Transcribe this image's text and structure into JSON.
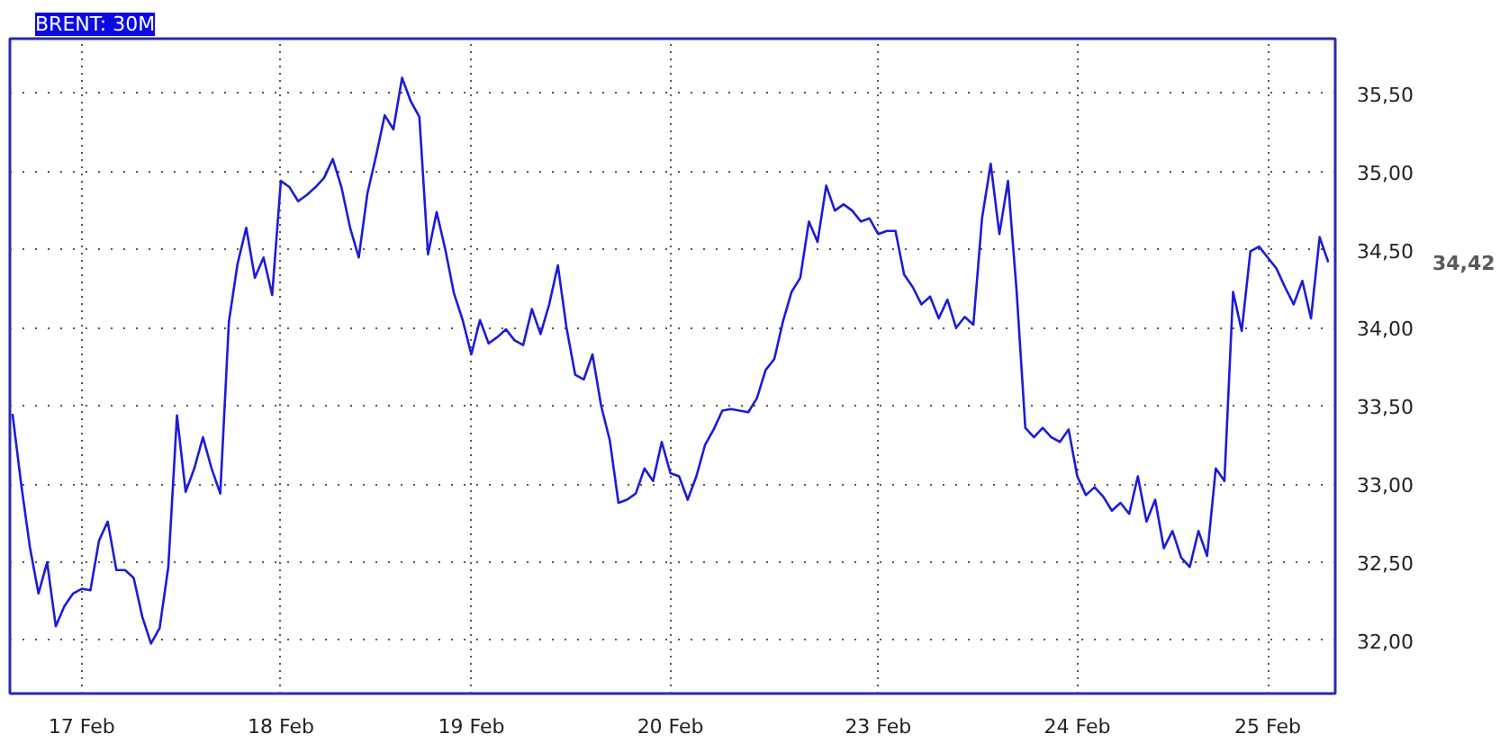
{
  "chart_data": {
    "type": "line",
    "title": "BRENT: 30M",
    "categories": [
      null,
      null,
      null,
      null,
      null,
      null,
      null,
      null,
      "17 Feb",
      null,
      null,
      null,
      null,
      null,
      null,
      null,
      null,
      null,
      null,
      null,
      null,
      null,
      null,
      null,
      null,
      null,
      null,
      null,
      null,
      null,
      null,
      "18 Feb",
      null,
      null,
      null,
      null,
      null,
      null,
      null,
      null,
      null,
      null,
      null,
      null,
      null,
      null,
      null,
      null,
      null,
      null,
      null,
      null,
      null,
      "19 Feb",
      null,
      null,
      null,
      null,
      null,
      null,
      null,
      null,
      null,
      null,
      null,
      null,
      null,
      null,
      null,
      null,
      null,
      null,
      null,
      null,
      null,
      null,
      "20 Feb",
      null,
      null,
      null,
      null,
      null,
      null,
      null,
      null,
      null,
      null,
      null,
      null,
      null,
      null,
      null,
      null,
      null,
      null,
      null,
      null,
      null,
      null,
      null,
      "23 Feb",
      null,
      null,
      null,
      null,
      null,
      null,
      null,
      null,
      null,
      null,
      null,
      null,
      null,
      null,
      null,
      null,
      null,
      null,
      null,
      null,
      null,
      null,
      "24 Feb",
      null,
      null,
      null,
      null,
      null,
      null,
      null,
      null,
      null,
      null,
      null,
      null,
      null,
      null,
      null,
      null,
      null,
      null,
      null,
      null,
      null,
      "25 Feb",
      null,
      null,
      null,
      null,
      null,
      null,
      null
    ],
    "series": [
      {
        "color": "#1c1cd8",
        "values": [
          33.45,
          33.0,
          32.6,
          32.3,
          32.5,
          32.09,
          32.22,
          32.3,
          32.33,
          32.32,
          32.64,
          32.76,
          32.45,
          32.45,
          32.4,
          32.15,
          31.98,
          32.08,
          32.47,
          33.44,
          32.95,
          33.1,
          33.3,
          33.1,
          32.94,
          34.04,
          34.41,
          34.64,
          34.32,
          34.45,
          34.21,
          34.94,
          34.9,
          34.81,
          34.85,
          34.9,
          34.96,
          35.08,
          34.9,
          34.64,
          34.45,
          34.86,
          35.1,
          35.36,
          35.27,
          35.6,
          35.45,
          35.35,
          34.47,
          34.74,
          34.5,
          34.22,
          34.05,
          33.83,
          34.05,
          33.9,
          33.94,
          33.99,
          33.92,
          33.89,
          34.12,
          33.96,
          34.15,
          34.4,
          34.0,
          33.7,
          33.67,
          33.83,
          33.5,
          33.28,
          32.88,
          32.9,
          32.94,
          33.1,
          33.02,
          33.27,
          33.07,
          33.05,
          32.9,
          33.05,
          33.25,
          33.35,
          33.47,
          33.48,
          33.47,
          33.46,
          33.55,
          33.73,
          33.8,
          34.04,
          34.23,
          34.32,
          34.68,
          34.55,
          34.91,
          34.75,
          34.79,
          34.75,
          34.68,
          34.7,
          34.6,
          34.62,
          34.62,
          34.34,
          34.26,
          34.15,
          34.2,
          34.06,
          34.18,
          34.0,
          34.07,
          34.02,
          34.7,
          35.05,
          34.6,
          34.94,
          34.23,
          33.36,
          33.3,
          33.36,
          33.3,
          33.27,
          33.35,
          33.05,
          32.93,
          32.98,
          32.92,
          32.83,
          32.88,
          32.81,
          33.05,
          32.76,
          32.9,
          32.59,
          32.7,
          32.53,
          32.47,
          32.7,
          32.54,
          33.1,
          33.02,
          34.23,
          33.98,
          34.49,
          34.52,
          34.45,
          34.38,
          34.26,
          34.15,
          34.3,
          34.06,
          34.58,
          34.42
        ]
      }
    ],
    "ylim": [
      31.66,
      35.85
    ],
    "yticks": [
      {
        "value": 32,
        "label": "32,00"
      },
      {
        "value": 32.5,
        "label": "32,50"
      },
      {
        "value": 33,
        "label": "33,00"
      },
      {
        "value": 33.5,
        "label": "33,50"
      },
      {
        "value": 34,
        "label": "34,00"
      },
      {
        "value": 34.5,
        "label": "34,50"
      },
      {
        "value": 35,
        "label": "35,00"
      },
      {
        "value": 35.5,
        "label": "35,50"
      }
    ],
    "grid": true,
    "line_style": "solid",
    "annotations": [
      "34,42"
    ]
  }
}
